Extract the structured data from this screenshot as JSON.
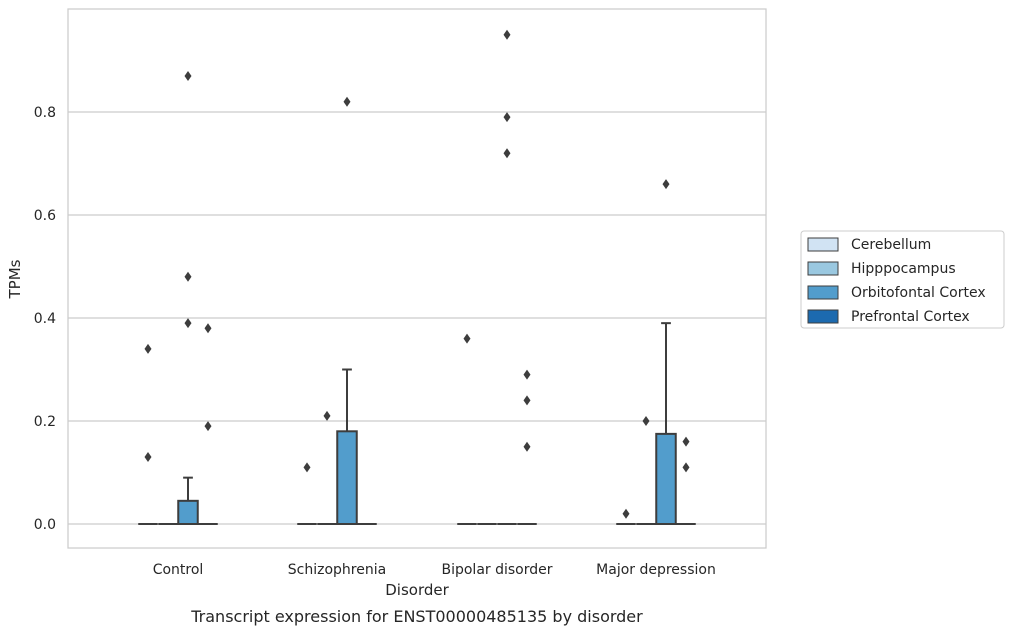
{
  "chart_data": {
    "type": "box",
    "xlabel": "Disorder",
    "ylabel": "TPMs",
    "caption": "Transcript expression for ENST00000485135 by disorder",
    "ylim": [
      -0.045,
      0.995
    ],
    "yticks": [
      0.0,
      0.2,
      0.4,
      0.6,
      0.8
    ],
    "ytick_labels": [
      "0.0",
      "0.2",
      "0.4",
      "0.6",
      "0.8"
    ],
    "grid": "horizontal",
    "legend_position": "right",
    "categories": [
      "Control",
      "Schizophrenia",
      "Bipolar disorder",
      "Major depression"
    ],
    "series": [
      {
        "name": "Cerebellum",
        "color": "#d1e3f3",
        "boxes": [
          {
            "q1": 0,
            "median": 0,
            "q3": 0,
            "whisker_low": 0,
            "whisker_high": 0,
            "outliers": [
              0.34,
              0.13
            ]
          },
          {
            "q1": 0,
            "median": 0,
            "q3": 0,
            "whisker_low": 0,
            "whisker_high": 0,
            "outliers": [
              0.11
            ]
          },
          {
            "q1": 0,
            "median": 0,
            "q3": 0,
            "whisker_low": 0,
            "whisker_high": 0,
            "outliers": [
              0.36
            ]
          },
          {
            "q1": 0,
            "median": 0,
            "q3": 0,
            "whisker_low": 0,
            "whisker_high": 0,
            "outliers": [
              0.02
            ]
          }
        ]
      },
      {
        "name": "Hipppocampus",
        "color": "#9ac8e0",
        "boxes": [
          {
            "q1": 0,
            "median": 0,
            "q3": 0,
            "whisker_low": 0,
            "whisker_high": 0,
            "outliers": []
          },
          {
            "q1": 0,
            "median": 0,
            "q3": 0,
            "whisker_low": 0,
            "whisker_high": 0,
            "outliers": [
              0.21
            ]
          },
          {
            "q1": 0,
            "median": 0,
            "q3": 0,
            "whisker_low": 0,
            "whisker_high": 0,
            "outliers": []
          },
          {
            "q1": 0,
            "median": 0,
            "q3": 0,
            "whisker_low": 0,
            "whisker_high": 0,
            "outliers": [
              0.2
            ]
          }
        ]
      },
      {
        "name": "Orbitofontal Cortex",
        "color": "#529dcc",
        "boxes": [
          {
            "q1": 0,
            "median": 0,
            "q3": 0.045,
            "whisker_low": 0,
            "whisker_high": 0.09,
            "outliers": [
              0.87,
              0.48,
              0.39
            ]
          },
          {
            "q1": 0,
            "median": 0,
            "q3": 0.18,
            "whisker_low": 0,
            "whisker_high": 0.3,
            "outliers": [
              0.82
            ]
          },
          {
            "q1": 0,
            "median": 0,
            "q3": 0,
            "whisker_low": 0,
            "whisker_high": 0,
            "outliers": [
              0.95,
              0.79,
              0.72
            ]
          },
          {
            "q1": 0,
            "median": 0,
            "q3": 0.175,
            "whisker_low": 0,
            "whisker_high": 0.39,
            "outliers": [
              0.66
            ]
          }
        ]
      },
      {
        "name": "Prefrontal Cortex",
        "color": "#1c6aaf",
        "boxes": [
          {
            "q1": 0,
            "median": 0,
            "q3": 0,
            "whisker_low": 0,
            "whisker_high": 0,
            "outliers": [
              0.38,
              0.19
            ]
          },
          {
            "q1": 0,
            "median": 0,
            "q3": 0,
            "whisker_low": 0,
            "whisker_high": 0,
            "outliers": []
          },
          {
            "q1": 0,
            "median": 0,
            "q3": 0,
            "whisker_low": 0,
            "whisker_high": 0,
            "outliers": [
              0.29,
              0.24,
              0.15
            ]
          },
          {
            "q1": 0,
            "median": 0,
            "q3": 0,
            "whisker_low": 0,
            "whisker_high": 0,
            "outliers": [
              0.16,
              0.11
            ]
          }
        ]
      }
    ]
  }
}
